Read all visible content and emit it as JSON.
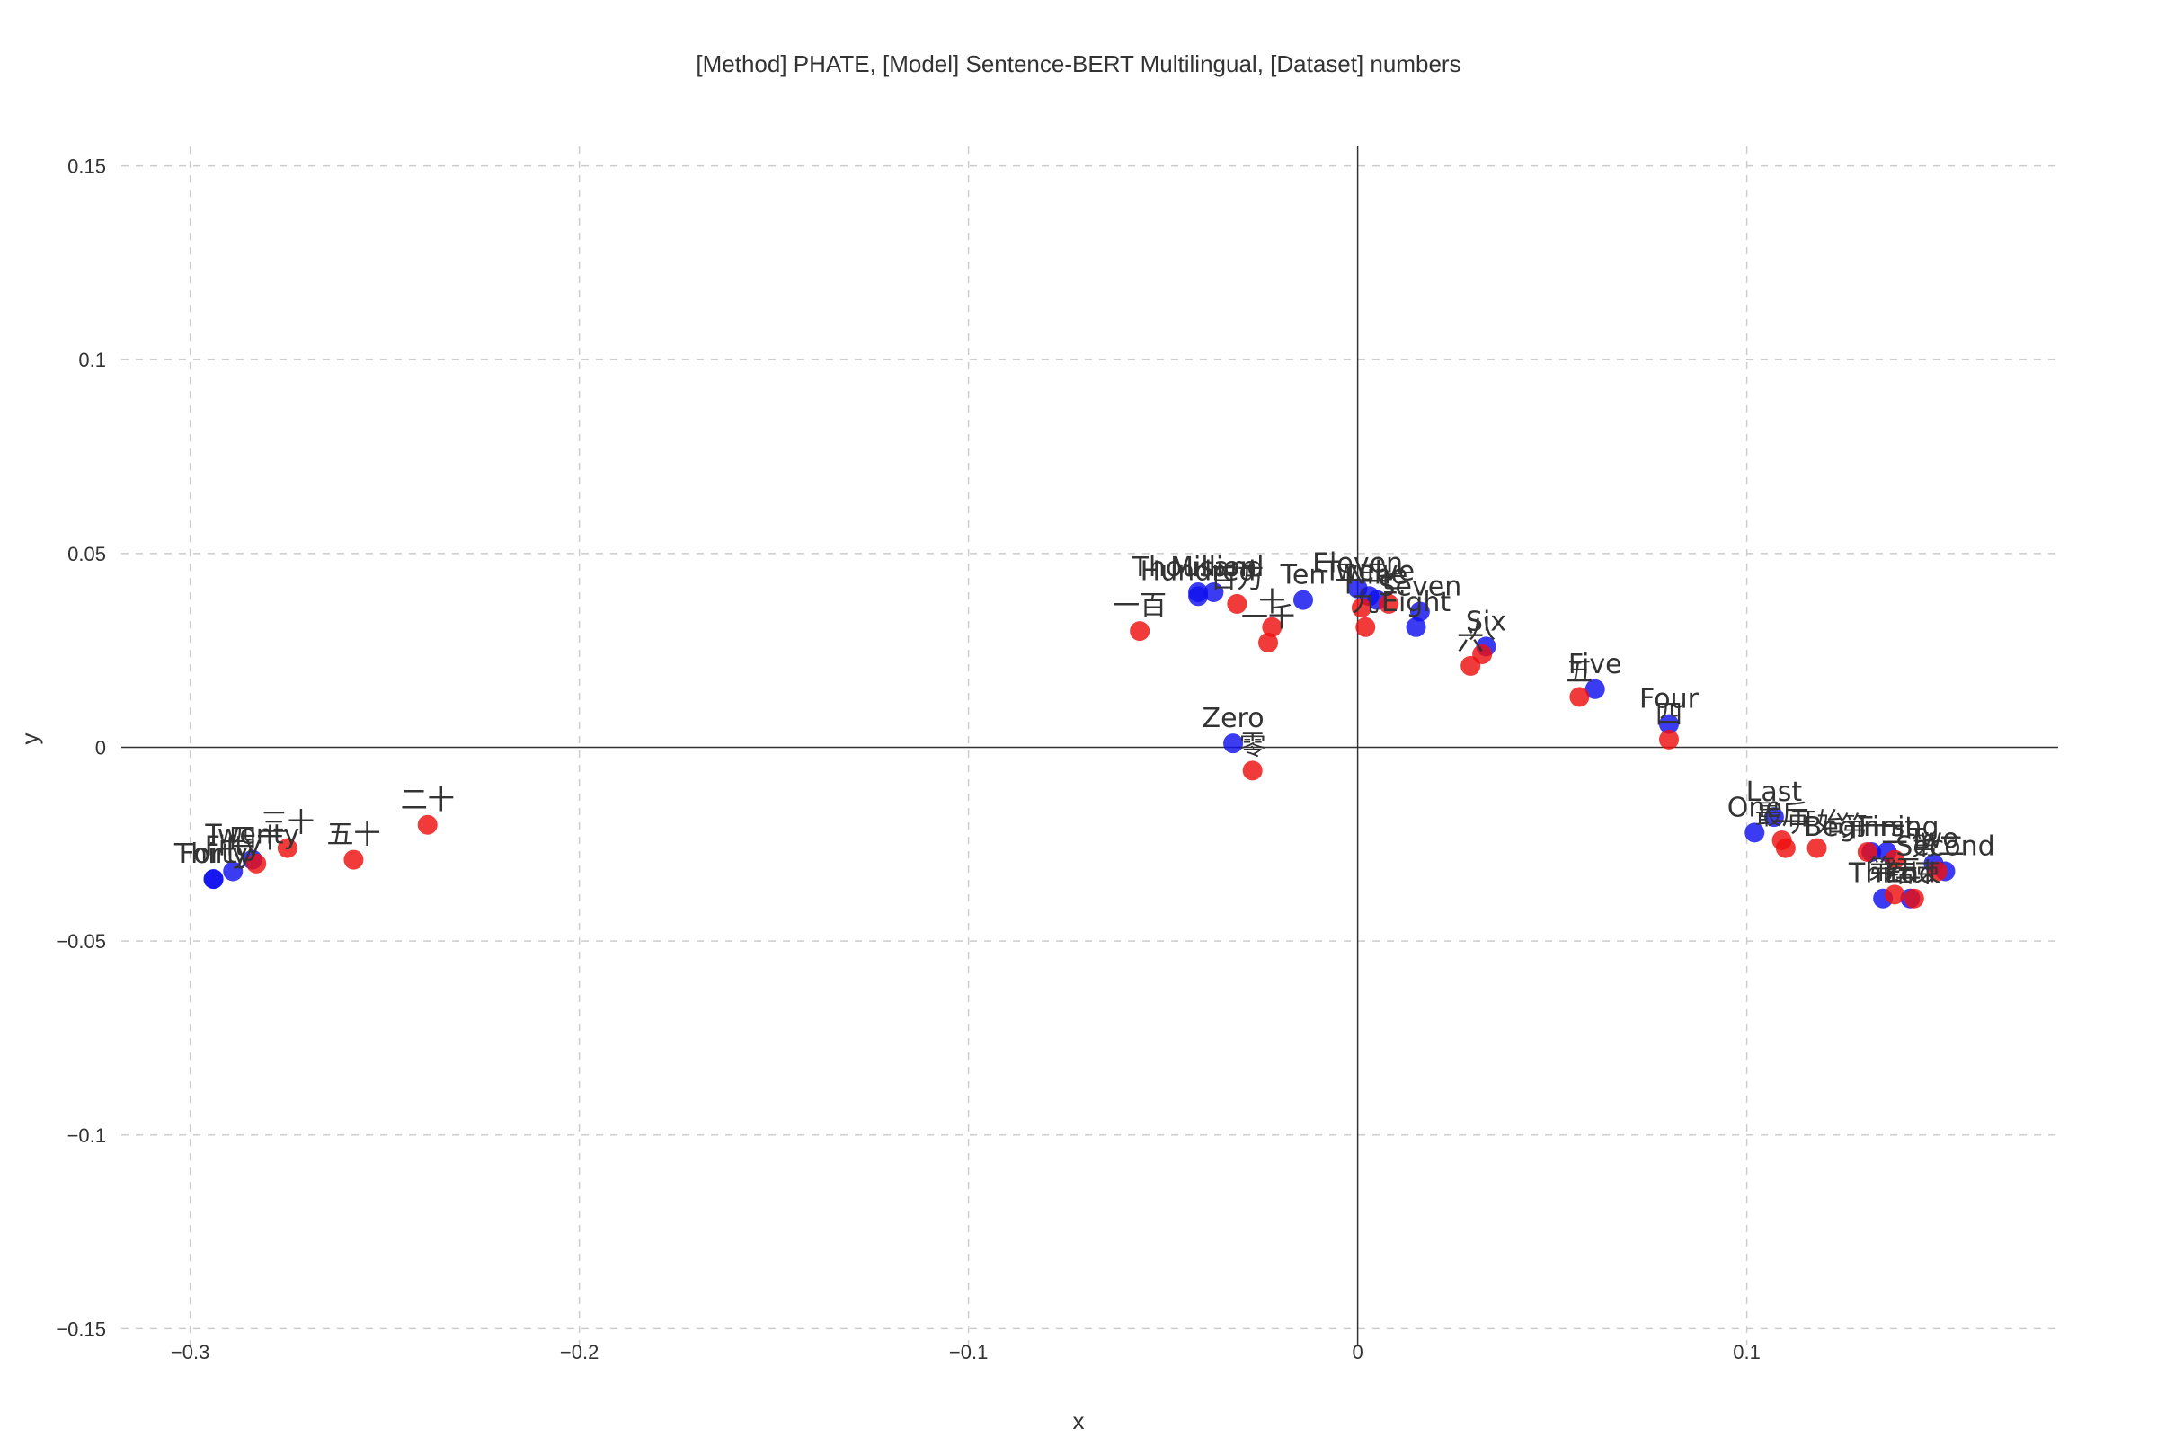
{
  "chart_data": {
    "type": "scatter",
    "title": "[Method] PHATE, [Model] Sentence-BERT Multilingual, [Dataset] numbers",
    "xlabel": "x",
    "ylabel": "y",
    "xlim": [
      -0.32,
      0.18
    ],
    "ylim": [
      -0.155,
      0.155
    ],
    "x_ticks": [
      {
        "value": -0.3,
        "label": "−0.3"
      },
      {
        "value": -0.2,
        "label": "−0.2"
      },
      {
        "value": -0.1,
        "label": "−0.1"
      },
      {
        "value": 0,
        "label": "0"
      },
      {
        "value": 0.1,
        "label": "0.1"
      }
    ],
    "y_ticks": [
      {
        "value": 0.15,
        "label": "0.15"
      },
      {
        "value": 0.1,
        "label": "0.1"
      },
      {
        "value": 0.05,
        "label": "0.05"
      },
      {
        "value": 0,
        "label": "0"
      },
      {
        "value": -0.05,
        "label": "−0.05"
      },
      {
        "value": -0.1,
        "label": "−0.1"
      },
      {
        "value": -0.15,
        "label": "−0.15"
      }
    ],
    "grid": true,
    "legend": "none",
    "series": [
      {
        "color": "#1010ee",
        "points": [
          {
            "x": -0.294,
            "y": -0.034,
            "label": "Thirty"
          },
          {
            "x": -0.294,
            "y": -0.034,
            "label": "Forty"
          },
          {
            "x": -0.289,
            "y": -0.032,
            "label": "Fifty"
          },
          {
            "x": -0.284,
            "y": -0.029,
            "label": "Twenty"
          },
          {
            "x": -0.041,
            "y": 0.04,
            "label": "Thousand"
          },
          {
            "x": -0.041,
            "y": 0.039,
            "label": "Hundred"
          },
          {
            "x": -0.037,
            "y": 0.04,
            "label": "Million"
          },
          {
            "x": -0.014,
            "y": 0.038,
            "label": "Ten"
          },
          {
            "x": 0.0,
            "y": 0.041,
            "label": "Eleven"
          },
          {
            "x": 0.003,
            "y": 0.039,
            "label": "Twelve"
          },
          {
            "x": 0.005,
            "y": 0.038,
            "label": "Nine"
          },
          {
            "x": 0.016,
            "y": 0.035,
            "label": "Seven"
          },
          {
            "x": 0.015,
            "y": 0.031,
            "label": "Eight"
          },
          {
            "x": 0.033,
            "y": 0.026,
            "label": "Six"
          },
          {
            "x": 0.061,
            "y": 0.015,
            "label": "Five"
          },
          {
            "x": 0.08,
            "y": 0.006,
            "label": "Four"
          },
          {
            "x": -0.032,
            "y": 0.001,
            "label": "Zero"
          },
          {
            "x": 0.107,
            "y": -0.018,
            "label": "Last"
          },
          {
            "x": 0.102,
            "y": -0.022,
            "label": "One"
          },
          {
            "x": 0.132,
            "y": -0.027,
            "label": "Beginning"
          },
          {
            "x": 0.136,
            "y": -0.027,
            "label": "First"
          },
          {
            "x": 0.148,
            "y": -0.03,
            "label": "Two"
          },
          {
            "x": 0.151,
            "y": -0.032,
            "label": "Second"
          },
          {
            "x": 0.135,
            "y": -0.039,
            "label": "Third"
          },
          {
            "x": 0.142,
            "y": -0.039,
            "label": "End"
          }
        ]
      },
      {
        "color": "#ee1010",
        "points": [
          {
            "x": -0.283,
            "y": -0.03,
            "label": "四十"
          },
          {
            "x": -0.275,
            "y": -0.026,
            "label": "三十"
          },
          {
            "x": -0.258,
            "y": -0.029,
            "label": "五十"
          },
          {
            "x": -0.239,
            "y": -0.02,
            "label": "二十"
          },
          {
            "x": -0.056,
            "y": 0.03,
            "label": "一百"
          },
          {
            "x": -0.031,
            "y": 0.037,
            "label": "百万"
          },
          {
            "x": -0.022,
            "y": 0.031,
            "label": "十"
          },
          {
            "x": -0.023,
            "y": 0.027,
            "label": "一千"
          },
          {
            "x": 0.001,
            "y": 0.036,
            "label": "十一"
          },
          {
            "x": 0.002,
            "y": 0.031,
            "label": "九"
          },
          {
            "x": 0.008,
            "y": 0.037,
            "label": "七"
          },
          {
            "x": 0.032,
            "y": 0.024,
            "label": "八"
          },
          {
            "x": 0.029,
            "y": 0.021,
            "label": "六"
          },
          {
            "x": 0.057,
            "y": 0.013,
            "label": "五"
          },
          {
            "x": 0.08,
            "y": 0.002,
            "label": "四"
          },
          {
            "x": -0.027,
            "y": -0.006,
            "label": "零"
          },
          {
            "x": 0.109,
            "y": -0.024,
            "label": "最后"
          },
          {
            "x": 0.11,
            "y": -0.026,
            "label": "一"
          },
          {
            "x": 0.118,
            "y": -0.026,
            "label": "开始"
          },
          {
            "x": 0.131,
            "y": -0.027,
            "label": "第一"
          },
          {
            "x": 0.138,
            "y": -0.029,
            "label": "二"
          },
          {
            "x": 0.149,
            "y": -0.032,
            "label": "第二"
          },
          {
            "x": 0.138,
            "y": -0.038,
            "label": "第三"
          },
          {
            "x": 0.143,
            "y": -0.039,
            "label": "结束"
          }
        ]
      }
    ]
  }
}
